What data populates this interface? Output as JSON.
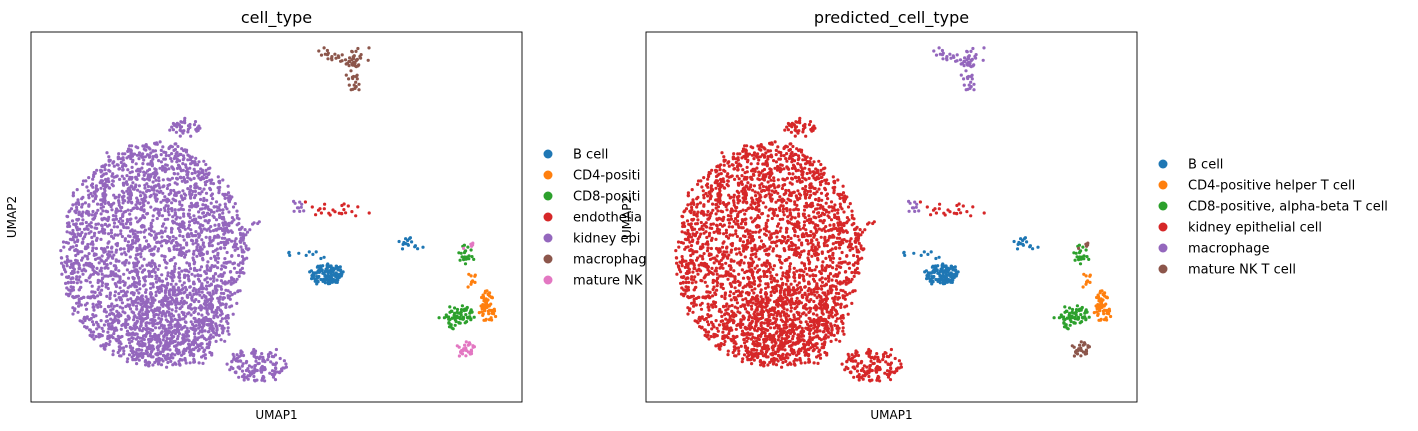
{
  "chart_data": [
    {
      "type": "scatter",
      "title": "cell_type",
      "xlabel": "UMAP1",
      "ylabel": "UMAP2",
      "xlim": [
        0,
        100
      ],
      "ylim": [
        0,
        100
      ],
      "grid": false,
      "legend_placement": "right",
      "series": [
        {
          "name": "B cell",
          "color": "#1f77b4"
        },
        {
          "name": "CD4-positi",
          "color": "#ff7f0e"
        },
        {
          "name": "CD8-positi",
          "color": "#2ca02c"
        },
        {
          "name": "endothelia",
          "color": "#d62728"
        },
        {
          "name": "kidney epi",
          "color": "#9467bd"
        },
        {
          "name": "macrophag",
          "color": "#8c564b"
        },
        {
          "name": "mature NK",
          "color": "#e377c2"
        }
      ]
    },
    {
      "type": "scatter",
      "title": "predicted_cell_type",
      "xlabel": "UMAP1",
      "ylabel": "UMAP2",
      "xlim": [
        0,
        100
      ],
      "ylim": [
        0,
        100
      ],
      "grid": false,
      "legend_placement": "right",
      "series": [
        {
          "name": "B cell",
          "color": "#1f77b4"
        },
        {
          "name": "CD4-positive helper T cell",
          "color": "#ff7f0e"
        },
        {
          "name": "CD8-positive, alpha-beta T cell",
          "color": "#2ca02c"
        },
        {
          "name": "kidney epithelial cell",
          "color": "#d62728"
        },
        {
          "name": "macrophage",
          "color": "#9467bd"
        },
        {
          "name": "mature NK T cell",
          "color": "#8c564b"
        }
      ]
    }
  ]
}
